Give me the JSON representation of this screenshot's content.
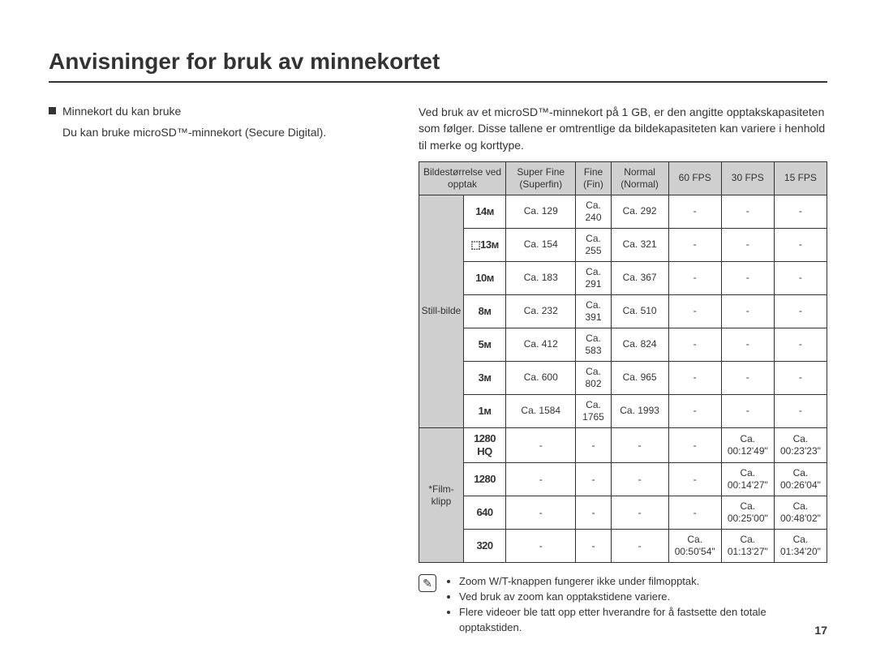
{
  "title": "Anvisninger for bruk av minnekortet",
  "left": {
    "section_title": "Minnekort du kan bruke",
    "text": "Du kan bruke microSD™-minnekort (Secure Digital)."
  },
  "right": {
    "intro": "Ved bruk av et microSD™-minnekort på 1 GB, er den angitte opptakskapasiteten som følger. Disse tallene er omtrentlige da bildekapasiteten kan variere i henhold til merke og korttype.",
    "headers": {
      "size": "Bildestørrelse ved opptak",
      "superfine": "Super Fine (Superfin)",
      "fine": "Fine (Fin)",
      "normal": "Normal (Normal)",
      "fps60": "60 FPS",
      "fps30": "30 FPS",
      "fps15": "15 FPS"
    },
    "still_label": "Still-bilde",
    "film_label": "*Film-klipp",
    "still_rows": [
      {
        "icon": "14ᴍ",
        "sf": "Ca. 129",
        "f": "Ca. 240",
        "n": "Ca. 292",
        "f60": "-",
        "f30": "-",
        "f15": "-"
      },
      {
        "icon": "⬚13ᴍ",
        "sf": "Ca. 154",
        "f": "Ca. 255",
        "n": "Ca. 321",
        "f60": "-",
        "f30": "-",
        "f15": "-"
      },
      {
        "icon": "10ᴍ",
        "sf": "Ca. 183",
        "f": "Ca. 291",
        "n": "Ca. 367",
        "f60": "-",
        "f30": "-",
        "f15": "-"
      },
      {
        "icon": "8ᴍ",
        "sf": "Ca. 232",
        "f": "Ca. 391",
        "n": "Ca. 510",
        "f60": "-",
        "f30": "-",
        "f15": "-"
      },
      {
        "icon": "5ᴍ",
        "sf": "Ca. 412",
        "f": "Ca. 583",
        "n": "Ca. 824",
        "f60": "-",
        "f30": "-",
        "f15": "-"
      },
      {
        "icon": "3ᴍ",
        "sf": "Ca. 600",
        "f": "Ca. 802",
        "n": "Ca. 965",
        "f60": "-",
        "f30": "-",
        "f15": "-"
      },
      {
        "icon": "1ᴍ",
        "sf": "Ca. 1584",
        "f": "Ca. 1765",
        "n": "Ca. 1993",
        "f60": "-",
        "f30": "-",
        "f15": "-"
      }
    ],
    "film_rows": [
      {
        "icon": "1280 HQ",
        "sf": "-",
        "f": "-",
        "n": "-",
        "f60": "-",
        "f30": "Ca. 00:12'49\"",
        "f15": "Ca. 00:23'23\""
      },
      {
        "icon": "1280",
        "sf": "-",
        "f": "-",
        "n": "-",
        "f60": "-",
        "f30": "Ca. 00:14'27\"",
        "f15": "Ca. 00:26'04\""
      },
      {
        "icon": "640",
        "sf": "-",
        "f": "-",
        "n": "-",
        "f60": "-",
        "f30": "Ca. 00:25'00\"",
        "f15": "Ca. 00:48'02\""
      },
      {
        "icon": "320",
        "sf": "-",
        "f": "-",
        "n": "-",
        "f60": "Ca. 00:50'54\"",
        "f30": "Ca. 01:13'27\"",
        "f15": "Ca. 01:34'20\""
      }
    ],
    "notes": [
      "Zoom W/T-knappen fungerer ikke under filmopptak.",
      "Ved bruk av zoom kan opptakstidene variere.",
      "Flere videoer ble tatt opp etter hverandre for å fastsette den totale opptakstiden."
    ]
  },
  "page_number": "17"
}
